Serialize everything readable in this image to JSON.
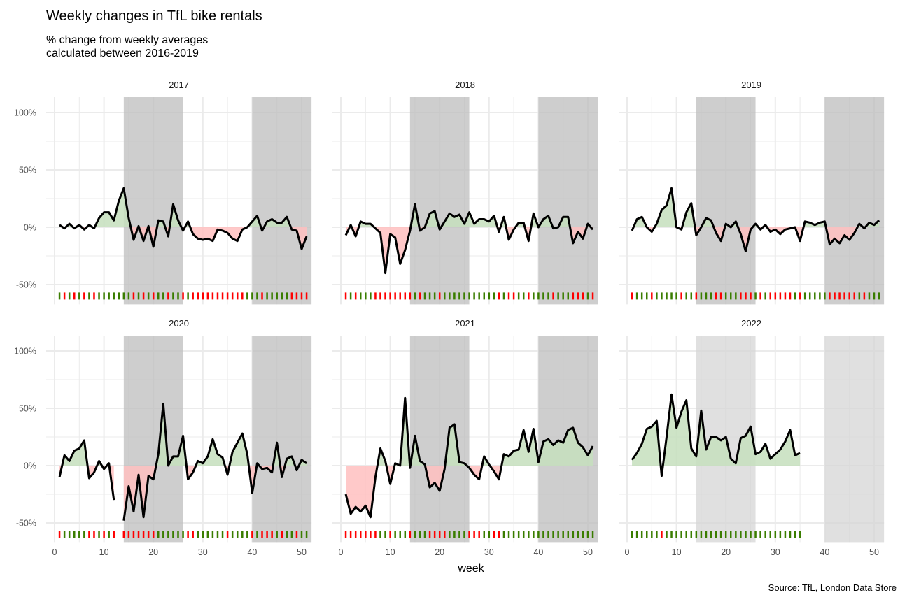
{
  "header": {
    "title": "Weekly changes in TfL bike rentals",
    "subtitle_lines": [
      "% change from weekly averages",
      "calculated between 2016-2019"
    ]
  },
  "footer": {
    "caption": "Source: TfL, London Data Store"
  },
  "colors": {
    "positive_fill": "#c6dfbd",
    "negative_fill": "#ffbfbf",
    "positive_tick": "#3a7d00",
    "negative_tick": "#ff0000",
    "shade_dark": "#bdbdbd",
    "shade_light": "#d6d6d6",
    "line": "#000000",
    "grid": "#ebebeb"
  },
  "chart_data": {
    "type": "line",
    "facet_by": "year",
    "xlabel": "week",
    "ylabel": "",
    "xlim": [
      0,
      52
    ],
    "ylim": [
      -60,
      110
    ],
    "x_ticks": [
      0,
      10,
      20,
      30,
      40,
      50
    ],
    "y_ticks": [
      -50,
      0,
      50,
      100
    ],
    "y_tick_labels": [
      "-50%",
      "0%",
      "50%",
      "100%"
    ],
    "shaded_week_ranges": [
      [
        14,
        26
      ],
      [
        40,
        52
      ]
    ],
    "lighter_shading_panels": [
      "2022"
    ],
    "panels": [
      {
        "year": "2017",
        "weeks": [
          1,
          2,
          3,
          4,
          5,
          6,
          7,
          8,
          9,
          10,
          11,
          12,
          13,
          14,
          15,
          16,
          17,
          18,
          19,
          20,
          21,
          22,
          23,
          24,
          25,
          26,
          27,
          28,
          29,
          30,
          31,
          32,
          33,
          34,
          35,
          36,
          37,
          38,
          39,
          40,
          41,
          42,
          43,
          44,
          45,
          46,
          47,
          48,
          49,
          50,
          51
        ],
        "values": [
          2,
          -1,
          3,
          -1,
          2,
          -2,
          2,
          -1,
          8,
          13,
          13,
          6,
          23,
          34,
          8,
          -11,
          1,
          -12,
          1,
          -17,
          6,
          5,
          -8,
          20,
          6,
          -3,
          5,
          -6,
          -10,
          -11,
          -10,
          -12,
          -2,
          -3,
          -5,
          -10,
          -12,
          -2,
          0,
          5,
          10,
          -3,
          5,
          7,
          4,
          4,
          9,
          -2,
          -3,
          -19,
          -8
        ]
      },
      {
        "year": "2018",
        "weeks": [
          1,
          2,
          3,
          4,
          5,
          6,
          7,
          8,
          9,
          10,
          11,
          12,
          13,
          14,
          15,
          16,
          17,
          18,
          19,
          20,
          21,
          22,
          23,
          24,
          25,
          26,
          27,
          28,
          29,
          30,
          31,
          32,
          33,
          34,
          35,
          36,
          37,
          38,
          39,
          40,
          41,
          42,
          43,
          44,
          45,
          46,
          47,
          48,
          49,
          50,
          51
        ],
        "values": [
          -7,
          2,
          -8,
          5,
          3,
          3,
          -1,
          -5,
          -40,
          -6,
          -9,
          -32,
          -20,
          -3,
          20,
          -3,
          0,
          12,
          14,
          -2,
          5,
          12,
          9,
          11,
          3,
          13,
          3,
          7,
          7,
          5,
          10,
          -4,
          9,
          -11,
          -2,
          4,
          4,
          -12,
          12,
          0,
          7,
          10,
          -1,
          0,
          9,
          9,
          -14,
          -4,
          -10,
          3,
          -2
        ]
      },
      {
        "year": "2019",
        "weeks": [
          1,
          2,
          3,
          4,
          5,
          6,
          7,
          8,
          9,
          10,
          11,
          12,
          13,
          14,
          15,
          16,
          17,
          18,
          19,
          20,
          21,
          22,
          23,
          24,
          25,
          26,
          27,
          28,
          29,
          30,
          31,
          32,
          33,
          34,
          35,
          36,
          37,
          38,
          39,
          40,
          41,
          42,
          43,
          44,
          45,
          46,
          47,
          48,
          49,
          50,
          51
        ],
        "values": [
          -3,
          7,
          9,
          0,
          -4,
          3,
          15,
          19,
          34,
          0,
          -2,
          13,
          21,
          -7,
          0,
          8,
          6,
          -5,
          -12,
          3,
          0,
          5,
          -6,
          -21,
          -2,
          3,
          -2,
          2,
          -4,
          -2,
          -6,
          -2,
          -1,
          0,
          -12,
          5,
          4,
          2,
          4,
          5,
          -15,
          -10,
          -14,
          -7,
          -11,
          -5,
          3,
          -1,
          4,
          2,
          6
        ]
      },
      {
        "year": "2020",
        "weeks": [
          1,
          2,
          3,
          4,
          5,
          6,
          7,
          8,
          9,
          10,
          11,
          12,
          13,
          14,
          15,
          16,
          17,
          18,
          19,
          20,
          21,
          22,
          23,
          24,
          25,
          26,
          27,
          28,
          29,
          30,
          31,
          32,
          33,
          34,
          35,
          36,
          37,
          38,
          39,
          40,
          41,
          42,
          43,
          44,
          45,
          46,
          47,
          48,
          49,
          50,
          51
        ],
        "values": [
          -10,
          9,
          4,
          13,
          15,
          22,
          -11,
          -6,
          4,
          -3,
          2,
          -30,
          null,
          -48,
          -18,
          -40,
          -8,
          -45,
          -9,
          -12,
          10,
          54,
          0,
          8,
          8,
          26,
          -12,
          -6,
          4,
          2,
          8,
          23,
          10,
          7,
          -8,
          12,
          20,
          28,
          10,
          -24,
          2,
          -3,
          -2,
          -6,
          20,
          -10,
          6,
          8,
          -4,
          5,
          2
        ]
      },
      {
        "year": "2021",
        "weeks": [
          1,
          2,
          3,
          4,
          5,
          6,
          7,
          8,
          9,
          10,
          11,
          12,
          13,
          14,
          15,
          16,
          17,
          18,
          19,
          20,
          21,
          22,
          23,
          24,
          25,
          26,
          27,
          28,
          29,
          30,
          31,
          32,
          33,
          34,
          35,
          36,
          37,
          38,
          39,
          40,
          41,
          42,
          43,
          44,
          45,
          46,
          47,
          48,
          49,
          50,
          51
        ],
        "values": [
          -25,
          -42,
          -36,
          -40,
          -35,
          -45,
          -10,
          15,
          4,
          -16,
          2,
          0,
          59,
          -2,
          26,
          4,
          1,
          -19,
          -15,
          -22,
          -3,
          33,
          36,
          3,
          2,
          -2,
          -8,
          -12,
          8,
          1,
          -5,
          -12,
          10,
          8,
          13,
          14,
          31,
          12,
          32,
          3,
          21,
          23,
          18,
          22,
          20,
          31,
          33,
          20,
          16,
          9,
          17
        ]
      },
      {
        "year": "2022",
        "weeks": [
          1,
          2,
          3,
          4,
          5,
          6,
          7,
          8,
          9,
          10,
          11,
          12,
          13,
          14,
          15,
          16,
          17,
          18,
          19,
          20,
          21,
          22,
          23,
          24,
          25,
          26,
          27,
          28,
          29,
          30,
          31,
          32,
          33,
          34,
          35
        ],
        "values": [
          5,
          11,
          19,
          32,
          34,
          39,
          -9,
          25,
          62,
          33,
          47,
          57,
          15,
          8,
          48,
          14,
          25,
          25,
          22,
          25,
          6,
          2,
          24,
          26,
          34,
          10,
          12,
          19,
          6,
          10,
          14,
          21,
          31,
          9,
          11
        ]
      }
    ]
  }
}
